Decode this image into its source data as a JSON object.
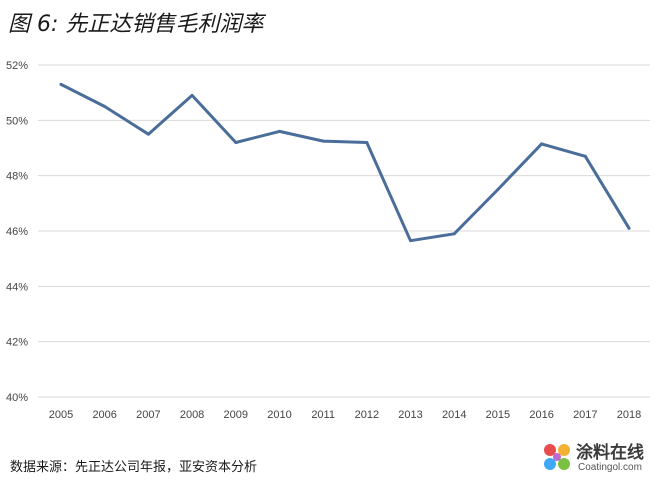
{
  "chart_data": {
    "type": "line",
    "title": "图 6: 先正达销售毛利润率",
    "xlabel": "",
    "ylabel": "",
    "x": [
      "2005",
      "2006",
      "2007",
      "2008",
      "2009",
      "2010",
      "2011",
      "2012",
      "2013",
      "2014",
      "2015",
      "2016",
      "2017",
      "2018"
    ],
    "series": [
      {
        "values": [
          51.3,
          50.5,
          49.5,
          50.9,
          49.2,
          49.6,
          49.25,
          49.2,
          45.65,
          45.9,
          47.5,
          49.15,
          48.7,
          46.1
        ]
      }
    ],
    "ylim": [
      40,
      52
    ],
    "yticks": [
      40,
      42,
      44,
      46,
      48,
      50,
      52
    ],
    "ytick_labels": [
      "40%",
      "42%",
      "44%",
      "46%",
      "48%",
      "50%",
      "52%"
    ],
    "grid": true,
    "line_color": "#4a6d99",
    "grid_color": "#d9d9d9"
  },
  "source": "数据来源：先正达公司年报，亚安资本分析",
  "watermark": {
    "name": "涂料在线",
    "url": "Coatingol.com"
  }
}
